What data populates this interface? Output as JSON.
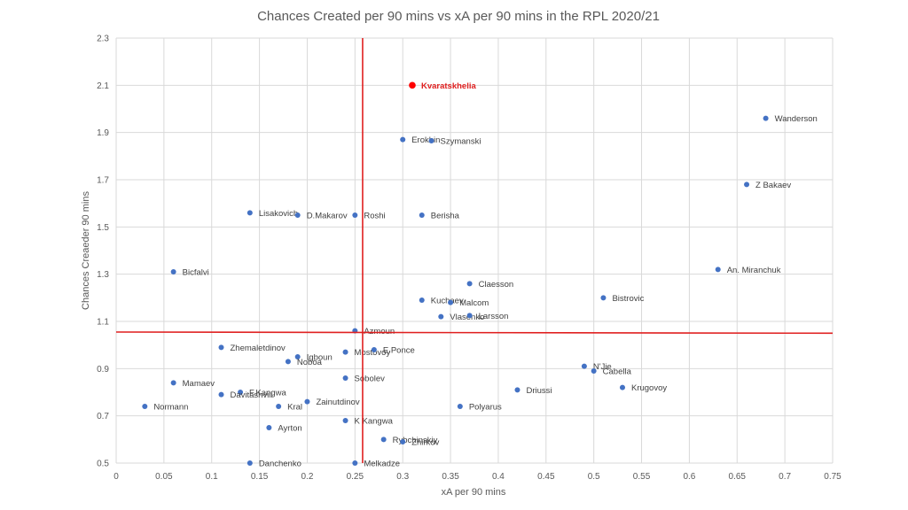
{
  "chart_data": {
    "type": "scatter",
    "title": "Chances Created per 90 mins vs xA per 90 mins in the RPL 2020/21",
    "xlabel": "xA per 90 mins",
    "ylabel": "Chances Creaeder 90 mins",
    "xlim": [
      0,
      0.75
    ],
    "ylim": [
      0.5,
      2.3
    ],
    "x_ticks": [
      "0",
      "0.05",
      "0.1",
      "0.15",
      "0.2",
      "0.25",
      "0.3",
      "0.35",
      "0.4",
      "0.45",
      "0.5",
      "0.55",
      "0.6",
      "0.65",
      "0.7",
      "0.75"
    ],
    "y_ticks": [
      "0.5",
      "0.7",
      "0.9",
      "1.1",
      "1.3",
      "1.5",
      "1.7",
      "1.9",
      "2.1",
      "2.3"
    ],
    "grid": true,
    "colors": {
      "point": "#4472c4",
      "highlight": "#ff0000",
      "reference_line": "#e02020",
      "grid": "#d9d9d9"
    },
    "reference_lines": {
      "vertical": {
        "x": 0.258
      },
      "horizontal": {
        "y_start": 1.055,
        "y_end": 1.05
      }
    },
    "points": [
      {
        "name": "Kvaratskhelia",
        "x": 0.31,
        "y": 2.1,
        "highlight": true
      },
      {
        "name": "Wanderson",
        "x": 0.68,
        "y": 1.96
      },
      {
        "name": "Erokhin",
        "x": 0.3,
        "y": 1.87
      },
      {
        "name": "Szymanski",
        "x": 0.33,
        "y": 1.865
      },
      {
        "name": "Z Bakaev",
        "x": 0.66,
        "y": 1.68
      },
      {
        "name": "Lisakovich",
        "x": 0.14,
        "y": 1.56
      },
      {
        "name": "D.Makarov",
        "x": 0.19,
        "y": 1.55
      },
      {
        "name": "Roshi",
        "x": 0.25,
        "y": 1.55
      },
      {
        "name": "Berisha",
        "x": 0.32,
        "y": 1.55
      },
      {
        "name": "Bicfalvi",
        "x": 0.06,
        "y": 1.31
      },
      {
        "name": "An. Miranchuk",
        "x": 0.63,
        "y": 1.32
      },
      {
        "name": "Claesson",
        "x": 0.37,
        "y": 1.26
      },
      {
        "name": "Bistrovic",
        "x": 0.51,
        "y": 1.2
      },
      {
        "name": "Kuchaev",
        "x": 0.32,
        "y": 1.19
      },
      {
        "name": "Malcom",
        "x": 0.35,
        "y": 1.18
      },
      {
        "name": "Vlasenko",
        "x": 0.34,
        "y": 1.12
      },
      {
        "name": "Larsson",
        "x": 0.37,
        "y": 1.125
      },
      {
        "name": "Azmoun",
        "x": 0.25,
        "y": 1.06
      },
      {
        "name": "Zhemaletdinov",
        "x": 0.11,
        "y": 0.99
      },
      {
        "name": "Mostovoy",
        "x": 0.24,
        "y": 0.97
      },
      {
        "name": "E.Ponce",
        "x": 0.27,
        "y": 0.98
      },
      {
        "name": "Igboun",
        "x": 0.19,
        "y": 0.95
      },
      {
        "name": "Noboa",
        "x": 0.18,
        "y": 0.93
      },
      {
        "name": "N'Jie",
        "x": 0.49,
        "y": 0.91
      },
      {
        "name": "Cabella",
        "x": 0.5,
        "y": 0.89
      },
      {
        "name": "Sobolev",
        "x": 0.24,
        "y": 0.86
      },
      {
        "name": "Mamaev",
        "x": 0.06,
        "y": 0.84
      },
      {
        "name": "Krugovoy",
        "x": 0.53,
        "y": 0.82
      },
      {
        "name": "Driussi",
        "x": 0.42,
        "y": 0.81
      },
      {
        "name": "F.Kangwa",
        "x": 0.13,
        "y": 0.8
      },
      {
        "name": "Davitashvili",
        "x": 0.11,
        "y": 0.79
      },
      {
        "name": "Zainutdinov",
        "x": 0.2,
        "y": 0.76
      },
      {
        "name": "Kral",
        "x": 0.17,
        "y": 0.74
      },
      {
        "name": "Normann",
        "x": 0.03,
        "y": 0.74
      },
      {
        "name": "Polyarus",
        "x": 0.36,
        "y": 0.74
      },
      {
        "name": "K Kangwa",
        "x": 0.24,
        "y": 0.68
      },
      {
        "name": "Ayrton",
        "x": 0.16,
        "y": 0.65
      },
      {
        "name": "Rybchinskiy",
        "x": 0.28,
        "y": 0.6
      },
      {
        "name": "Zhirkov",
        "x": 0.3,
        "y": 0.59
      },
      {
        "name": "Danchenko",
        "x": 0.14,
        "y": 0.5
      },
      {
        "name": "Melkadze",
        "x": 0.25,
        "y": 0.5
      }
    ]
  }
}
